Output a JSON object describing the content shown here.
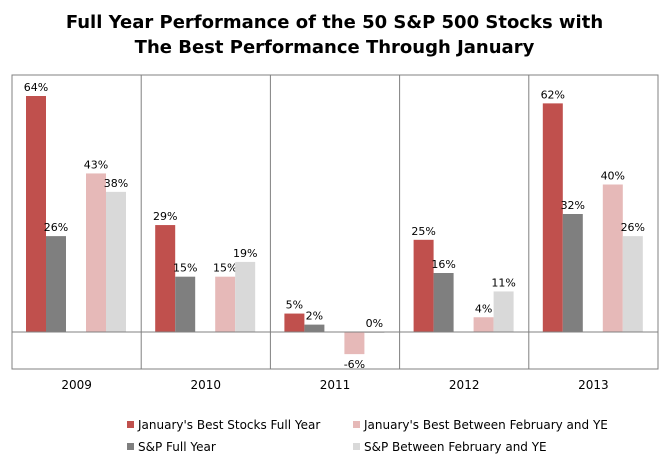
{
  "chart_data": {
    "type": "bar",
    "title_line1": "Full Year Performance of the 50 S&P 500 Stocks with",
    "title_line2": "The Best Performance Through January",
    "categories": [
      "2009",
      "2010",
      "2011",
      "2012",
      "2013"
    ],
    "series": [
      {
        "name": "January's Best Stocks Full Year",
        "color": "#c0504d",
        "values": [
          64,
          29,
          5,
          25,
          62
        ],
        "labels": [
          "64%",
          "29%",
          "5%",
          "25%",
          "62%"
        ]
      },
      {
        "name": "S&P Full Year",
        "color": "#7f7f7f",
        "values": [
          26,
          15,
          2,
          16,
          32
        ],
        "labels": [
          "26%",
          "15%",
          "2%",
          "16%",
          "32%"
        ]
      },
      {
        "name": "January's Best Between February and YE",
        "color": "#e6b9b8",
        "values": [
          43,
          15,
          -6,
          4,
          40
        ],
        "labels": [
          "43%",
          "15%",
          "-6%",
          "4%",
          "40%"
        ]
      },
      {
        "name": "S&P Between February and YE",
        "color": "#d9d9d9",
        "values": [
          38,
          19,
          0,
          11,
          26
        ],
        "labels": [
          "38%",
          "19%",
          "0%",
          "11%",
          "26%"
        ]
      }
    ],
    "grid": false,
    "legend_position": "bottom"
  }
}
